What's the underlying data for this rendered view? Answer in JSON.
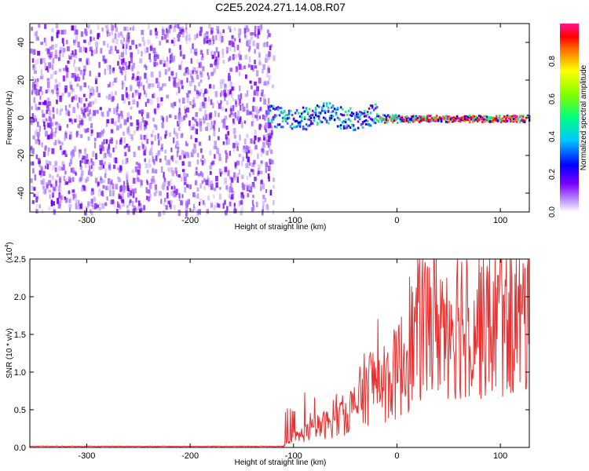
{
  "title": "C2E5.2024.271.14.08.R07",
  "chart_data": [
    {
      "type": "heatmap",
      "title": "C2E5.2024.271.14.08.R07",
      "xlabel": "Height of straight line (km)",
      "ylabel": "Frequency (Hz)",
      "xlim": [
        -355,
        128
      ],
      "ylim": [
        -50,
        50
      ],
      "xticks": [
        -300,
        -200,
        -100,
        0,
        100
      ],
      "yticks": [
        -40,
        -20,
        0,
        20,
        40
      ],
      "noise_region_x": [
        -355,
        -120
      ],
      "signal_region_x": [
        -125,
        128
      ],
      "colorbar": {
        "label": "Normalized spectral amplitude",
        "range": [
          0.0,
          1.0
        ],
        "ticks": [
          0.0,
          0.2,
          0.4,
          0.6,
          0.8
        ]
      }
    },
    {
      "type": "line",
      "xlabel": "Height of straight line (km)",
      "ylabel": "SNR (10 * v/v)",
      "multiplier": "(x10",
      "multiplier_exp": "4",
      "xlim": [
        -355,
        128
      ],
      "ylim": [
        0.0,
        2.5
      ],
      "xticks": [
        -300,
        -200,
        -100,
        0,
        100
      ],
      "yticks": [
        "0.0",
        "0.5",
        "1.0",
        "1.5",
        "2.0",
        "2.5"
      ],
      "series": [
        {
          "name": "SNR",
          "color": "#e83030",
          "trend_x": [
            -355,
            -110,
            -100,
            -80,
            -60,
            -40,
            -30,
            -20,
            -10,
            0,
            10,
            20,
            40,
            60,
            80,
            100,
            128
          ],
          "trend_y": [
            0.01,
            0.01,
            0.12,
            0.25,
            0.35,
            0.55,
            0.8,
            0.9,
            0.85,
            1.0,
            1.25,
            1.55,
            1.7,
            1.75,
            1.7,
            1.72,
            1.7
          ]
        }
      ]
    }
  ]
}
